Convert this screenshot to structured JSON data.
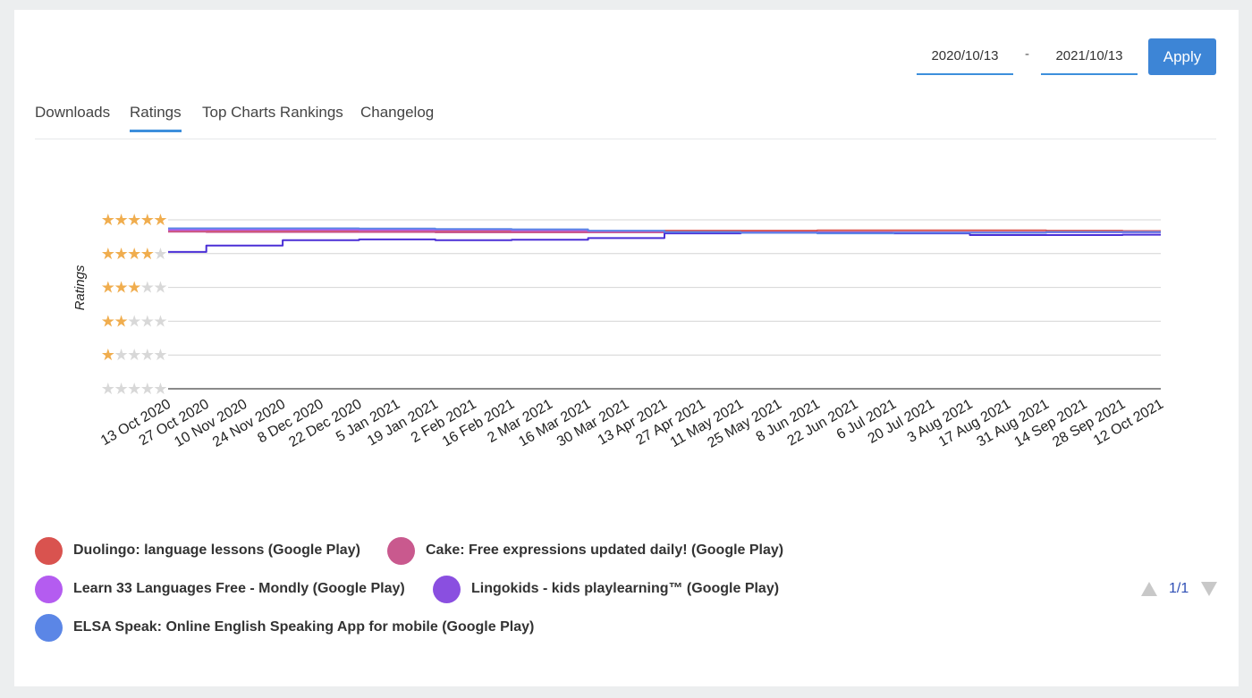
{
  "date_range": {
    "start": "2020/10/13",
    "separator": "-",
    "end": "2021/10/13",
    "apply_label": "Apply"
  },
  "tabs": [
    {
      "label": "Downloads",
      "active": false
    },
    {
      "label": "Ratings",
      "active": true
    },
    {
      "label": "Top Charts Rankings",
      "active": false
    },
    {
      "label": "Changelog",
      "active": false
    }
  ],
  "pager": {
    "label": "1/1"
  },
  "chart_data": {
    "type": "line",
    "ylabel": "Ratings",
    "ylim": [
      0,
      5
    ],
    "ytick_values": [
      5,
      4,
      3,
      2,
      1,
      0
    ],
    "y_tick_style": "star-rating",
    "grid": true,
    "legend_placement": "bottom",
    "x_tick_labels": [
      "13 Oct 2020",
      "27 Oct 2020",
      "10 Nov 2020",
      "24 Nov 2020",
      "8 Dec 2020",
      "22 Dec 2020",
      "5 Jan 2021",
      "19 Jan 2021",
      "2 Feb 2021",
      "16 Feb 2021",
      "2 Mar 2021",
      "16 Mar 2021",
      "30 Mar 2021",
      "13 Apr 2021",
      "27 Apr 2021",
      "11 May 2021",
      "25 May 2021",
      "8 Jun 2021",
      "22 Jun 2021",
      "6 Jul 2021",
      "20 Jul 2021",
      "3 Aug 2021",
      "17 Aug 2021",
      "31 Aug 2021",
      "14 Sep 2021",
      "28 Sep 2021",
      "12 Oct 2021"
    ],
    "x": [
      "2020-10-13",
      "2020-11-10",
      "2020-12-08",
      "2021-01-05",
      "2021-02-02",
      "2021-03-02",
      "2021-03-30",
      "2021-04-27",
      "2021-05-25",
      "2021-06-22",
      "2021-07-20",
      "2021-08-17",
      "2021-09-14",
      "2021-10-12"
    ],
    "series": [
      {
        "name": "Duolingo: language lessons (Google Play)",
        "color": "#d9534f",
        "values": [
          4.67,
          4.66,
          4.66,
          4.66,
          4.66,
          4.66,
          4.67,
          4.68,
          4.68,
          4.69,
          4.69,
          4.69,
          4.68,
          4.67
        ]
      },
      {
        "name": "Cake: Free expressions updated daily! (Google Play)",
        "color": "#c9598e",
        "values": [
          4.65,
          4.64,
          4.64,
          4.64,
          4.63,
          4.63,
          4.63,
          4.63,
          4.62,
          4.62,
          4.62,
          4.62,
          4.64,
          4.65
        ]
      },
      {
        "name": "Learn 33 Languages Free - Mondly (Google Play)",
        "color": "#b45cf0",
        "values": [
          4.71,
          4.71,
          4.71,
          4.7,
          4.7,
          4.69,
          4.67,
          4.63,
          4.63,
          4.62,
          4.63,
          4.63,
          4.63,
          4.63
        ]
      },
      {
        "name": "Lingokids - kids playlearning™ (Google Play)",
        "color": "#4a2fd6",
        "values": [
          4.05,
          4.24,
          4.4,
          4.42,
          4.4,
          4.41,
          4.46,
          4.6,
          4.62,
          4.62,
          4.6,
          4.55,
          4.55,
          4.56
        ]
      },
      {
        "name": "ELSA Speak: Online English Speaking App for mobile (Google Play)",
        "color": "#5b86e6",
        "values": [
          4.75,
          4.75,
          4.75,
          4.74,
          4.73,
          4.72,
          4.68,
          4.64,
          4.62,
          4.6,
          4.62,
          4.62,
          4.64,
          4.64
        ]
      }
    ]
  }
}
